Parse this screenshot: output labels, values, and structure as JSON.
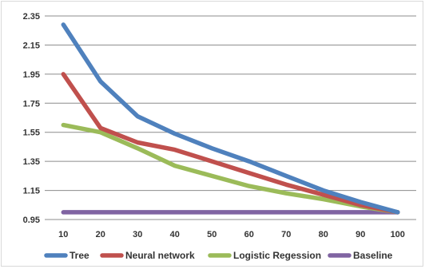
{
  "chart_data": {
    "type": "line",
    "title": "",
    "xlabel": "",
    "ylabel": "",
    "categories": [
      "10",
      "20",
      "30",
      "40",
      "50",
      "60",
      "70",
      "80",
      "90",
      "100"
    ],
    "ylim": [
      0.95,
      2.35
    ],
    "yticks": [
      "0.95",
      "1.15",
      "1.35",
      "1.55",
      "1.75",
      "1.95",
      "2.15",
      "2.35"
    ],
    "grid": true,
    "legend_position": "bottom",
    "series": [
      {
        "name": "Tree",
        "color": "#4f81bd",
        "values": [
          2.29,
          1.9,
          1.66,
          1.54,
          1.44,
          1.35,
          1.25,
          1.15,
          1.07,
          1.0
        ]
      },
      {
        "name": "Neural network",
        "color": "#c0504d",
        "values": [
          1.95,
          1.58,
          1.48,
          1.43,
          1.35,
          1.27,
          1.19,
          1.12,
          1.05,
          1.0
        ]
      },
      {
        "name": "Logistic Regession",
        "color": "#9bbb59",
        "values": [
          1.6,
          1.55,
          1.44,
          1.32,
          1.25,
          1.18,
          1.13,
          1.09,
          1.04,
          1.0
        ]
      },
      {
        "name": "Baseline",
        "color": "#8064a2",
        "values": [
          1.0,
          1.0,
          1.0,
          1.0,
          1.0,
          1.0,
          1.0,
          1.0,
          1.0,
          1.0
        ]
      }
    ]
  }
}
